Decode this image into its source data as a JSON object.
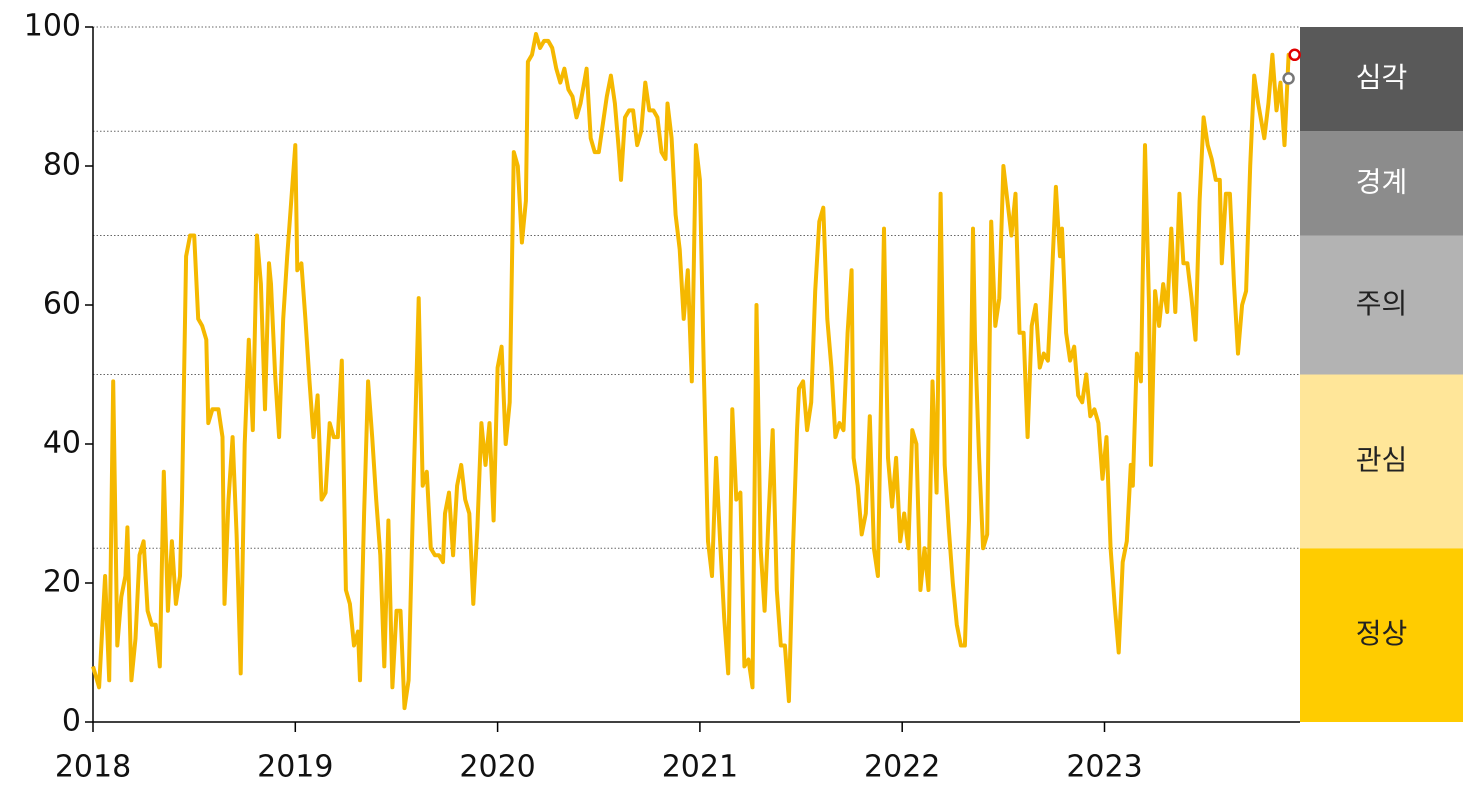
{
  "chart_data": {
    "type": "line",
    "x": [
      2018.0,
      2018.03,
      2018.06,
      2018.08,
      2018.1,
      2018.12,
      2018.14,
      2018.16,
      2018.17,
      2018.19,
      2018.21,
      2018.23,
      2018.25,
      2018.27,
      2018.29,
      2018.31,
      2018.33,
      2018.35,
      2018.37,
      2018.39,
      2018.41,
      2018.43,
      2018.44,
      2018.46,
      2018.48,
      2018.5,
      2018.52,
      2018.54,
      2018.56,
      2018.57,
      2018.59,
      2018.62,
      2018.64,
      2018.65,
      2018.67,
      2018.69,
      2018.71,
      2018.73,
      2018.75,
      2018.77,
      2018.79,
      2018.81,
      2018.83,
      2018.85,
      2018.87,
      2018.88,
      2018.9,
      2018.92,
      2018.94,
      2018.96,
      2019.0,
      2019.01,
      2019.03,
      2019.05,
      2019.07,
      2019.09,
      2019.11,
      2019.13,
      2019.15,
      2019.17,
      2019.19,
      2019.21,
      2019.23,
      2019.25,
      2019.27,
      2019.29,
      2019.31,
      2019.32,
      2019.34,
      2019.36,
      2019.38,
      2019.4,
      2019.42,
      2019.44,
      2019.46,
      2019.48,
      2019.5,
      2019.52,
      2019.54,
      2019.56,
      2019.58,
      2019.61,
      2019.63,
      2019.65,
      2019.67,
      2019.69,
      2019.71,
      2019.73,
      2019.74,
      2019.76,
      2019.78,
      2019.8,
      2019.82,
      2019.84,
      2019.86,
      2019.88,
      2019.9,
      2019.92,
      2019.94,
      2019.96,
      2019.98,
      2020.0,
      2020.02,
      2020.04,
      2020.06,
      2020.08,
      2020.1,
      2020.12,
      2020.14,
      2020.15,
      2020.17,
      2020.19,
      2020.21,
      2020.23,
      2020.25,
      2020.27,
      2020.29,
      2020.31,
      2020.33,
      2020.35,
      2020.37,
      2020.39,
      2020.41,
      2020.44,
      2020.46,
      2020.48,
      2020.5,
      2020.52,
      2020.54,
      2020.56,
      2020.58,
      2020.6,
      2020.61,
      2020.63,
      2020.65,
      2020.67,
      2020.69,
      2020.71,
      2020.73,
      2020.75,
      2020.77,
      2020.79,
      2020.81,
      2020.83,
      2020.84,
      2020.86,
      2020.88,
      2020.9,
      2020.92,
      2020.94,
      2020.96,
      2020.98,
      2021.0,
      2021.02,
      2021.04,
      2021.06,
      2021.08,
      2021.1,
      2021.12,
      2021.14,
      2021.16,
      2021.18,
      2021.2,
      2021.22,
      2021.24,
      2021.26,
      2021.28,
      2021.3,
      2021.32,
      2021.34,
      2021.36,
      2021.38,
      2021.4,
      2021.42,
      2021.44,
      2021.46,
      2021.48,
      2021.49,
      2021.51,
      2021.53,
      2021.55,
      2021.57,
      2021.59,
      2021.61,
      2021.63,
      2021.65,
      2021.67,
      2021.69,
      2021.71,
      2021.73,
      2021.75,
      2021.76,
      2021.78,
      2021.8,
      2021.82,
      2021.84,
      2021.86,
      2021.88,
      2021.91,
      2021.93,
      2021.95,
      2021.97,
      2021.99,
      2022.01,
      2022.03,
      2022.05,
      2022.07,
      2022.09,
      2022.11,
      2022.13,
      2022.15,
      2022.17,
      2022.19,
      2022.21,
      2022.23,
      2022.25,
      2022.27,
      2022.29,
      2022.31,
      2022.33,
      2022.35,
      2022.36,
      2022.38,
      2022.4,
      2022.42,
      2022.44,
      2022.46,
      2022.48,
      2022.5,
      2022.52,
      2022.54,
      2022.56,
      2022.58,
      2022.6,
      2022.62,
      2022.64,
      2022.66,
      2022.68,
      2022.7,
      2022.72,
      2022.74,
      2022.76,
      2022.78,
      2022.79,
      2022.81,
      2022.83,
      2022.85,
      2022.87,
      2022.89,
      2022.91,
      2022.93,
      2022.95,
      2022.97,
      2022.99,
      2023.01,
      2023.03,
      2023.05,
      2023.07,
      2023.09,
      2023.11,
      2023.13,
      2023.14,
      2023.16,
      2023.18,
      2023.2,
      2023.22,
      2023.23,
      2023.25,
      2023.27,
      2023.29,
      2023.31,
      2023.33,
      2023.35,
      2023.37,
      2023.39,
      2023.41,
      2023.43,
      2023.45,
      2023.47,
      2023.49,
      2023.51,
      2023.53,
      2023.55,
      2023.57,
      2023.58,
      2023.6,
      2023.62,
      2023.64,
      2023.66,
      2023.68,
      2023.7,
      2023.72,
      2023.74,
      2023.76,
      2023.79,
      2023.81,
      2023.83,
      2023.85,
      2023.87,
      2023.89,
      2023.91,
      2023.94
    ],
    "values": [
      8,
      5,
      21,
      6,
      49,
      11,
      18,
      21,
      28,
      6,
      12,
      24,
      26,
      16,
      14,
      14,
      8,
      36,
      16,
      26,
      17,
      21,
      32,
      67,
      70,
      70,
      58,
      57,
      55,
      43,
      45,
      45,
      41,
      17,
      32,
      41,
      27,
      7,
      40,
      55,
      42,
      70,
      63,
      45,
      66,
      63,
      50,
      41,
      58,
      67,
      83,
      65,
      66,
      58,
      49,
      41,
      47,
      32,
      33,
      43,
      41,
      41,
      52,
      19,
      17,
      11,
      13,
      6,
      30,
      49,
      41,
      32,
      24,
      8,
      29,
      5,
      16,
      16,
      2,
      6,
      29,
      61,
      34,
      36,
      25,
      24,
      24,
      23,
      30,
      33,
      24,
      34,
      37,
      32,
      30,
      17,
      28,
      43,
      37,
      43,
      29,
      51,
      54,
      40,
      46,
      82,
      80,
      69,
      75,
      95,
      96,
      99,
      97,
      98,
      98,
      97,
      94,
      92,
      94,
      91,
      90,
      87,
      89,
      94,
      84,
      82,
      82,
      86,
      90,
      93,
      89,
      82,
      78,
      87,
      88,
      88,
      83,
      85,
      92,
      88,
      88,
      87,
      82,
      81,
      89,
      84,
      73,
      68,
      58,
      65,
      49,
      83,
      78,
      50,
      26,
      21,
      38,
      26,
      15,
      7,
      45,
      32,
      33,
      8,
      9,
      5,
      60,
      25,
      16,
      30,
      42,
      19,
      11,
      11,
      3,
      25,
      42,
      48,
      49,
      42,
      46,
      62,
      72,
      74,
      58,
      51,
      41,
      43,
      42,
      56,
      65,
      38,
      34,
      27,
      30,
      44,
      25,
      21,
      71,
      38,
      31,
      38,
      26,
      30,
      25,
      42,
      40,
      19,
      25,
      19,
      49,
      33,
      76,
      37,
      28,
      20,
      14,
      11,
      11,
      29,
      71,
      55,
      38,
      25,
      27,
      72,
      57,
      61,
      80,
      75,
      70,
      76,
      56,
      56,
      41,
      57,
      60,
      51,
      53,
      52,
      64,
      77,
      67,
      71,
      56,
      52,
      54,
      47,
      46,
      50,
      44,
      45,
      43,
      35,
      41,
      25,
      17,
      10,
      23,
      26,
      37,
      34,
      53,
      49,
      83,
      60,
      37,
      62,
      57,
      63,
      59,
      71,
      59,
      76,
      66,
      66,
      61,
      55,
      75,
      87,
      83,
      81,
      78,
      78,
      66,
      76,
      76,
      63,
      53,
      60,
      62,
      80,
      93,
      89,
      84,
      89,
      96,
      88,
      92,
      83,
      96,
      96
    ],
    "color": "#f5b800",
    "xlim": [
      2018,
      2023.94
    ],
    "xticks": [
      2018,
      2019,
      2020,
      2021,
      2022,
      2023
    ],
    "ylim": [
      0,
      100
    ],
    "yticks": [
      0,
      20,
      40,
      60,
      80,
      100
    ],
    "zones": [
      {
        "label": "정상",
        "from": 0,
        "to": 25,
        "color": "#ffcc00"
      },
      {
        "label": "관심",
        "from": 25,
        "to": 50,
        "color": "#ffe699"
      },
      {
        "label": "주의",
        "from": 50,
        "to": 70,
        "color": "#b3b3b3"
      },
      {
        "label": "경계",
        "from": 70,
        "to": 85,
        "color": "#8c8c8c"
      },
      {
        "label": "심각",
        "from": 85,
        "to": 100,
        "color": "#595959"
      }
    ],
    "markers": [
      {
        "x": 2023.91,
        "y": 92.6,
        "color": "#777777"
      },
      {
        "x": 2023.94,
        "y": 96,
        "color": "#e00000"
      }
    ]
  }
}
